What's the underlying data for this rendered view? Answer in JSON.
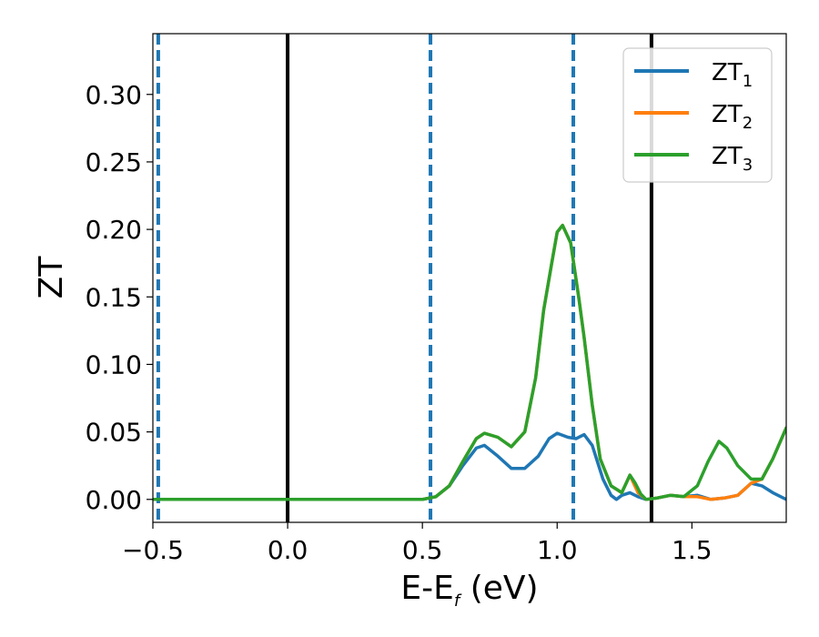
{
  "chart_data": {
    "type": "line",
    "xlabel_main": "E-E",
    "xlabel_sub": "f",
    "xlabel_unit": " (eV)",
    "ylabel": "ZT",
    "xlim": [
      -0.5,
      1.85
    ],
    "ylim": [
      -0.017,
      0.345
    ],
    "x_ticks": [
      {
        "value": -0.5,
        "label": "−0.5"
      },
      {
        "value": 0.0,
        "label": "0.0"
      },
      {
        "value": 0.5,
        "label": "0.5"
      },
      {
        "value": 1.0,
        "label": "1.0"
      },
      {
        "value": 1.5,
        "label": "1.5"
      }
    ],
    "y_ticks": [
      {
        "value": 0.0,
        "label": "0.00"
      },
      {
        "value": 0.05,
        "label": "0.05"
      },
      {
        "value": 0.1,
        "label": "0.10"
      },
      {
        "value": 0.15,
        "label": "0.15"
      },
      {
        "value": 0.2,
        "label": "0.20"
      },
      {
        "value": 0.25,
        "label": "0.25"
      },
      {
        "value": 0.3,
        "label": "0.30"
      }
    ],
    "grid": false,
    "legend_position": "top-right",
    "vlines_solid": [
      0.0,
      1.35
    ],
    "vlines_dashed": [
      -0.48,
      0.53,
      1.06
    ],
    "vline_solid_color": "#000000",
    "vline_dashed_color": "#1f77b4",
    "series": [
      {
        "name": "ZT",
        "name_sub": "1",
        "color": "#1f77b4",
        "points": [
          [
            -0.5,
            0.0
          ],
          [
            0.4,
            0.0
          ],
          [
            0.5,
            0.0
          ],
          [
            0.55,
            0.002
          ],
          [
            0.6,
            0.01
          ],
          [
            0.65,
            0.025
          ],
          [
            0.7,
            0.038
          ],
          [
            0.73,
            0.04
          ],
          [
            0.78,
            0.032
          ],
          [
            0.83,
            0.023
          ],
          [
            0.88,
            0.023
          ],
          [
            0.93,
            0.032
          ],
          [
            0.97,
            0.045
          ],
          [
            1.0,
            0.049
          ],
          [
            1.04,
            0.046
          ],
          [
            1.07,
            0.045
          ],
          [
            1.1,
            0.048
          ],
          [
            1.13,
            0.04
          ],
          [
            1.17,
            0.015
          ],
          [
            1.2,
            0.003
          ],
          [
            1.22,
            0.0
          ],
          [
            1.24,
            0.003
          ],
          [
            1.27,
            0.005
          ],
          [
            1.3,
            0.002
          ],
          [
            1.33,
            0.0
          ],
          [
            1.37,
            0.001
          ],
          [
            1.42,
            0.003
          ],
          [
            1.47,
            0.002
          ],
          [
            1.52,
            0.003
          ],
          [
            1.57,
            0.0
          ],
          [
            1.62,
            0.001
          ],
          [
            1.67,
            0.003
          ],
          [
            1.72,
            0.012
          ],
          [
            1.76,
            0.01
          ],
          [
            1.8,
            0.005
          ],
          [
            1.85,
            0.0
          ]
        ]
      },
      {
        "name": "ZT",
        "name_sub": "2",
        "color": "#ff7f0e",
        "points": [
          [
            -0.5,
            0.0
          ],
          [
            0.4,
            0.0
          ],
          [
            0.5,
            0.0
          ],
          [
            0.55,
            0.002
          ],
          [
            0.6,
            0.01
          ],
          [
            0.65,
            0.028
          ],
          [
            0.7,
            0.045
          ],
          [
            0.73,
            0.049
          ],
          [
            0.78,
            0.046
          ],
          [
            0.83,
            0.039
          ],
          [
            0.88,
            0.05
          ],
          [
            0.92,
            0.09
          ],
          [
            0.95,
            0.14
          ],
          [
            0.98,
            0.175
          ],
          [
            1.0,
            0.198
          ],
          [
            1.02,
            0.203
          ],
          [
            1.05,
            0.19
          ],
          [
            1.08,
            0.15
          ],
          [
            1.1,
            0.12
          ],
          [
            1.13,
            0.07
          ],
          [
            1.16,
            0.03
          ],
          [
            1.2,
            0.01
          ],
          [
            1.24,
            0.005
          ],
          [
            1.27,
            0.018
          ],
          [
            1.3,
            0.005
          ],
          [
            1.33,
            0.0
          ],
          [
            1.37,
            0.001
          ],
          [
            1.42,
            0.003
          ],
          [
            1.47,
            0.002
          ],
          [
            1.52,
            0.002
          ],
          [
            1.57,
            0.0
          ],
          [
            1.62,
            0.001
          ],
          [
            1.67,
            0.003
          ],
          [
            1.72,
            0.012
          ],
          [
            1.76,
            0.015
          ],
          [
            1.8,
            0.03
          ],
          [
            1.85,
            0.053
          ]
        ]
      },
      {
        "name": "ZT",
        "name_sub": "3",
        "color": "#2ca02c",
        "points": [
          [
            -0.5,
            0.0
          ],
          [
            0.4,
            0.0
          ],
          [
            0.5,
            0.0
          ],
          [
            0.55,
            0.002
          ],
          [
            0.6,
            0.01
          ],
          [
            0.65,
            0.028
          ],
          [
            0.7,
            0.045
          ],
          [
            0.73,
            0.049
          ],
          [
            0.78,
            0.046
          ],
          [
            0.83,
            0.039
          ],
          [
            0.88,
            0.05
          ],
          [
            0.92,
            0.09
          ],
          [
            0.95,
            0.14
          ],
          [
            0.98,
            0.175
          ],
          [
            1.0,
            0.198
          ],
          [
            1.02,
            0.203
          ],
          [
            1.05,
            0.19
          ],
          [
            1.08,
            0.15
          ],
          [
            1.1,
            0.12
          ],
          [
            1.13,
            0.07
          ],
          [
            1.16,
            0.03
          ],
          [
            1.2,
            0.01
          ],
          [
            1.24,
            0.005
          ],
          [
            1.27,
            0.018
          ],
          [
            1.29,
            0.012
          ],
          [
            1.31,
            0.004
          ],
          [
            1.33,
            0.0
          ],
          [
            1.37,
            0.001
          ],
          [
            1.42,
            0.003
          ],
          [
            1.47,
            0.002
          ],
          [
            1.52,
            0.01
          ],
          [
            1.56,
            0.028
          ],
          [
            1.6,
            0.043
          ],
          [
            1.63,
            0.038
          ],
          [
            1.67,
            0.025
          ],
          [
            1.72,
            0.015
          ],
          [
            1.76,
            0.015
          ],
          [
            1.8,
            0.03
          ],
          [
            1.85,
            0.053
          ]
        ]
      }
    ]
  }
}
